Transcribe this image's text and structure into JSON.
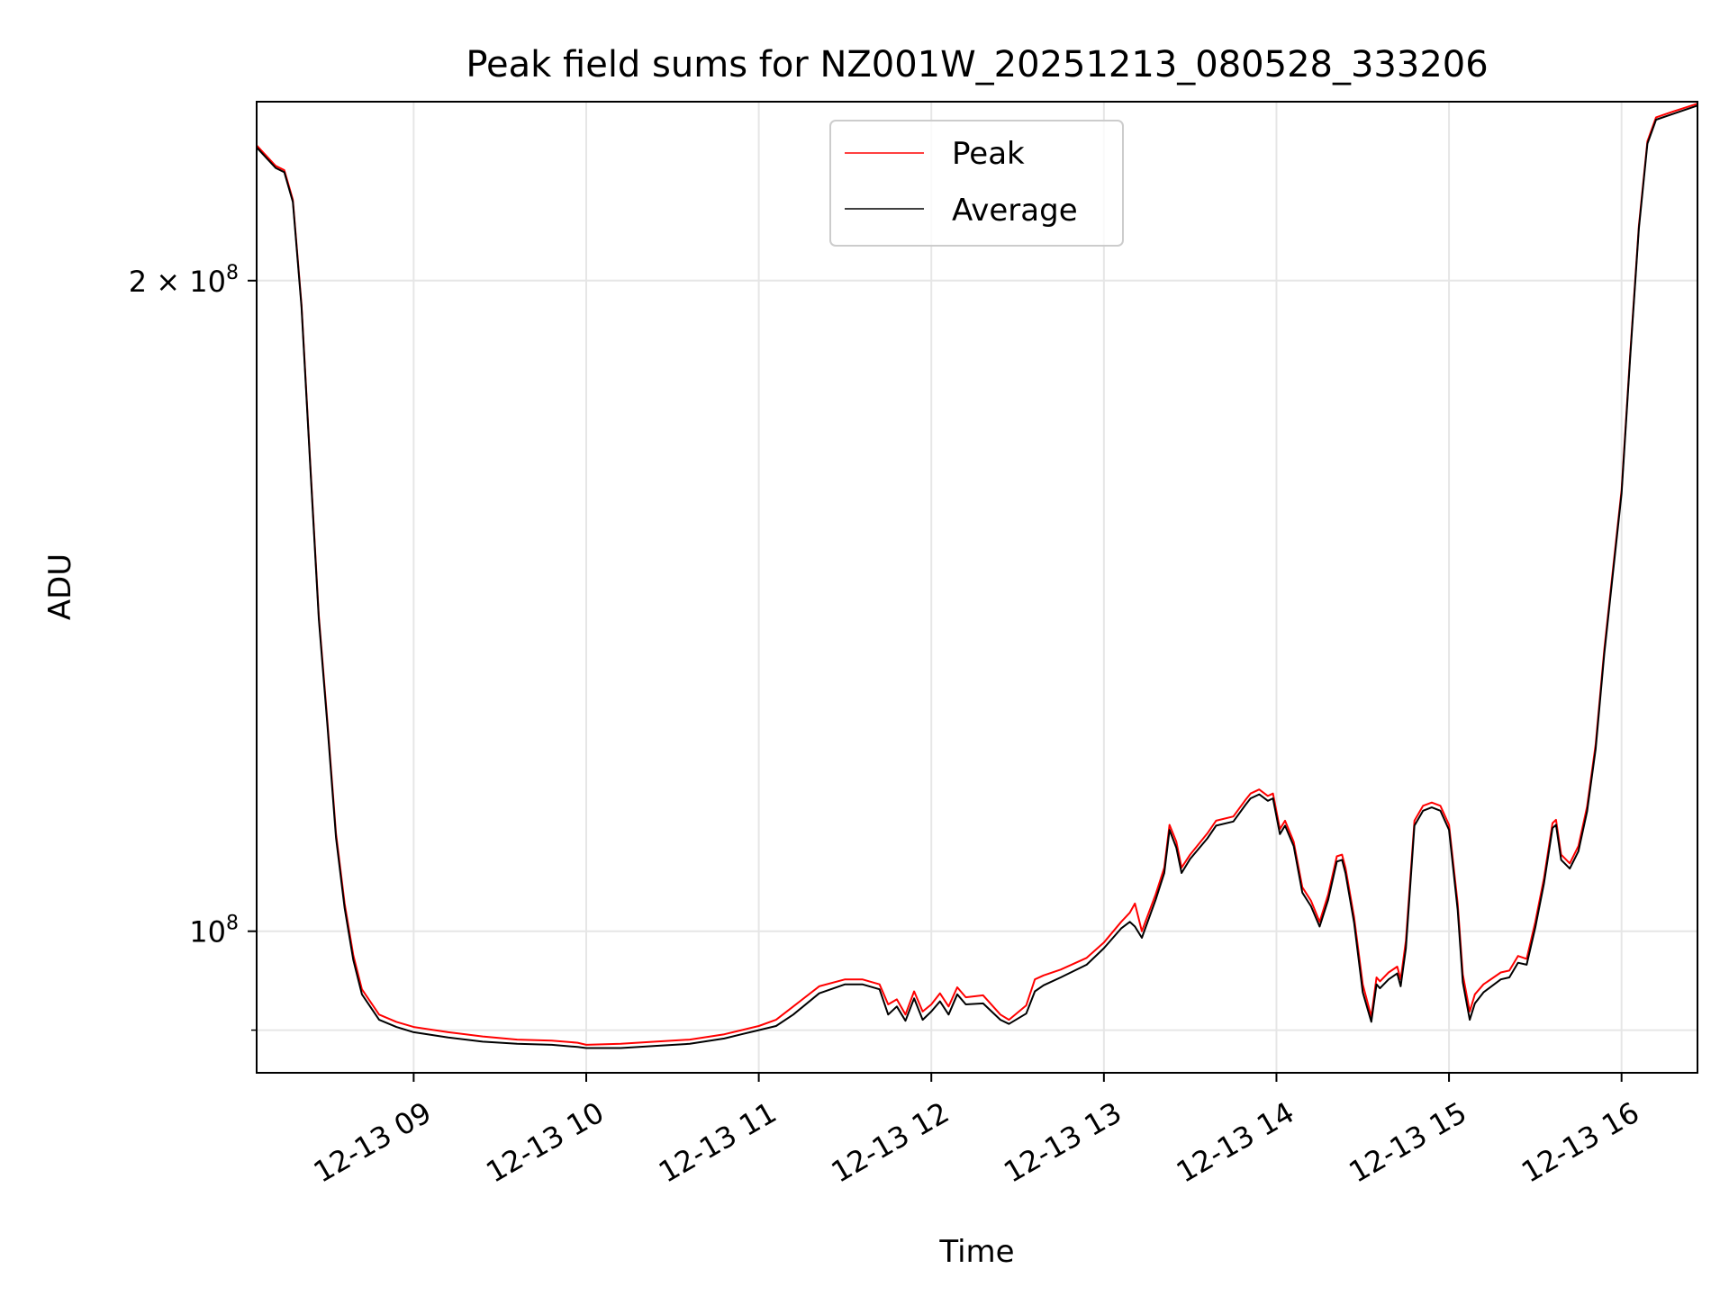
{
  "chart_data": {
    "type": "line",
    "title": "Peak field sums for NZ001W_20251213_080528_333206",
    "xlabel": "Time",
    "ylabel": "ADU",
    "yscale": "log",
    "ylim": [
      86000000,
      242000000
    ],
    "xlim": [
      8.09,
      16.44
    ],
    "grid": true,
    "legend_position": "top-center",
    "x_ticks": [
      {
        "value": 9,
        "label": "12-13 09"
      },
      {
        "value": 10,
        "label": "12-13 10"
      },
      {
        "value": 11,
        "label": "12-13 11"
      },
      {
        "value": 12,
        "label": "12-13 12"
      },
      {
        "value": 13,
        "label": "12-13 13"
      },
      {
        "value": 14,
        "label": "12-13 14"
      },
      {
        "value": 15,
        "label": "12-13 15"
      },
      {
        "value": 16,
        "label": "12-13 16"
      }
    ],
    "y_ticks": [
      {
        "value": 100000000,
        "mantissa": "",
        "exponent": "8"
      },
      {
        "value": 200000000,
        "mantissa": "2",
        "exponent": "8"
      }
    ],
    "y_minor_ticks": [
      90000000
    ],
    "tick_base": "10",
    "tick_times": "×",
    "series": [
      {
        "name": "Peak",
        "color": "#ff0000",
        "x": [
          8.09,
          8.2,
          8.25,
          8.3,
          8.35,
          8.4,
          8.45,
          8.5,
          8.55,
          8.6,
          8.65,
          8.7,
          8.8,
          8.9,
          9.0,
          9.2,
          9.4,
          9.6,
          9.8,
          9.95,
          10.0,
          10.2,
          10.4,
          10.6,
          10.8,
          10.9,
          11.0,
          11.1,
          11.2,
          11.35,
          11.5,
          11.6,
          11.7,
          11.75,
          11.8,
          11.85,
          11.9,
          11.95,
          12.0,
          12.05,
          12.1,
          12.15,
          12.2,
          12.3,
          12.4,
          12.45,
          12.55,
          12.6,
          12.65,
          12.75,
          12.9,
          13.0,
          13.1,
          13.15,
          13.18,
          13.22,
          13.3,
          13.35,
          13.38,
          13.42,
          13.45,
          13.5,
          13.6,
          13.65,
          13.75,
          13.82,
          13.85,
          13.9,
          13.95,
          13.98,
          14.02,
          14.05,
          14.1,
          14.15,
          14.2,
          14.25,
          14.3,
          14.35,
          14.38,
          14.4,
          14.45,
          14.5,
          14.55,
          14.58,
          14.6,
          14.65,
          14.7,
          14.72,
          14.75,
          14.8,
          14.85,
          14.9,
          14.95,
          15.0,
          15.05,
          15.08,
          15.12,
          15.15,
          15.2,
          15.3,
          15.35,
          15.4,
          15.45,
          15.5,
          15.55,
          15.6,
          15.62,
          15.65,
          15.7,
          15.75,
          15.8,
          15.85,
          15.9,
          15.95,
          16.0,
          16.05,
          16.1,
          16.15,
          16.2,
          16.3,
          16.44
        ],
        "y": [
          231000000,
          226000000,
          225000000,
          218000000,
          195000000,
          165000000,
          140000000,
          125000000,
          111000000,
          103000000,
          97500000,
          94000000,
          91500000,
          90800000,
          90300000,
          89800000,
          89400000,
          89100000,
          89000000,
          88800000,
          88600000,
          88700000,
          88900000,
          89100000,
          89600000,
          90000000,
          90400000,
          91000000,
          92300000,
          94300000,
          95000000,
          95000000,
          94500000,
          92500000,
          93000000,
          91500000,
          93800000,
          91800000,
          92500000,
          93600000,
          92300000,
          94200000,
          93200000,
          93400000,
          91500000,
          91000000,
          92400000,
          95000000,
          95400000,
          96000000,
          97200000,
          98800000,
          101000000,
          102000000,
          103000000,
          100000000,
          104000000,
          107000000,
          112000000,
          110000000,
          107000000,
          108500000,
          111000000,
          112500000,
          113000000,
          115000000,
          115800000,
          116300000,
          115500000,
          115800000,
          111500000,
          112500000,
          110000000,
          104800000,
          103300000,
          101000000,
          104000000,
          108300000,
          108500000,
          107000000,
          101500000,
          94500000,
          91300000,
          95200000,
          94800000,
          95700000,
          96300000,
          95000000,
          99000000,
          112500000,
          114300000,
          114700000,
          114300000,
          112000000,
          103000000,
          95500000,
          91800000,
          93500000,
          94500000,
          95700000,
          95900000,
          97400000,
          97100000,
          101000000,
          105800000,
          112200000,
          112600000,
          108500000,
          107500000,
          109500000,
          114200000,
          122000000,
          135000000,
          147000000,
          160000000,
          185000000,
          212000000,
          232000000,
          238000000,
          239500000,
          241500000
        ]
      },
      {
        "name": "Average",
        "color": "#000000",
        "x": [
          8.09,
          8.2,
          8.25,
          8.3,
          8.35,
          8.4,
          8.45,
          8.5,
          8.55,
          8.6,
          8.65,
          8.7,
          8.8,
          8.9,
          9.0,
          9.2,
          9.4,
          9.6,
          9.8,
          9.95,
          10.0,
          10.2,
          10.4,
          10.6,
          10.8,
          10.9,
          11.0,
          11.1,
          11.2,
          11.35,
          11.5,
          11.6,
          11.7,
          11.75,
          11.8,
          11.85,
          11.9,
          11.95,
          12.0,
          12.05,
          12.1,
          12.15,
          12.2,
          12.3,
          12.4,
          12.45,
          12.55,
          12.6,
          12.65,
          12.75,
          12.9,
          13.0,
          13.1,
          13.15,
          13.18,
          13.22,
          13.3,
          13.35,
          13.38,
          13.42,
          13.45,
          13.5,
          13.6,
          13.65,
          13.75,
          13.82,
          13.85,
          13.9,
          13.95,
          13.98,
          14.02,
          14.05,
          14.1,
          14.15,
          14.2,
          14.25,
          14.3,
          14.35,
          14.38,
          14.4,
          14.45,
          14.5,
          14.55,
          14.58,
          14.6,
          14.65,
          14.7,
          14.72,
          14.75,
          14.8,
          14.85,
          14.9,
          14.95,
          15.0,
          15.05,
          15.08,
          15.12,
          15.15,
          15.2,
          15.3,
          15.35,
          15.4,
          15.45,
          15.5,
          15.55,
          15.6,
          15.62,
          15.65,
          15.7,
          15.75,
          15.8,
          15.85,
          15.9,
          15.95,
          16.0,
          16.05,
          16.1,
          16.15,
          16.2,
          16.3,
          16.44
        ],
        "y": [
          230500000,
          225500000,
          224500000,
          217500000,
          194500000,
          164500000,
          139500000,
          124500000,
          110500000,
          102500000,
          97000000,
          93500000,
          91000000,
          90300000,
          89800000,
          89300000,
          88900000,
          88700000,
          88600000,
          88400000,
          88300000,
          88300000,
          88500000,
          88700000,
          89200000,
          89600000,
          90000000,
          90400000,
          91500000,
          93600000,
          94500000,
          94500000,
          94000000,
          91500000,
          92300000,
          90900000,
          93100000,
          91000000,
          91800000,
          92800000,
          91500000,
          93500000,
          92500000,
          92600000,
          91000000,
          90600000,
          91600000,
          93800000,
          94400000,
          95200000,
          96500000,
          98200000,
          100300000,
          101000000,
          100500000,
          99300000,
          103400000,
          106400000,
          111400000,
          109300000,
          106400000,
          108000000,
          110400000,
          111900000,
          112400000,
          114400000,
          115200000,
          115700000,
          114900000,
          115200000,
          110900000,
          111900000,
          109500000,
          104200000,
          102700000,
          100500000,
          103400000,
          107700000,
          107900000,
          106400000,
          100900000,
          93700000,
          90800000,
          94500000,
          94100000,
          95000000,
          95600000,
          94300000,
          98200000,
          111900000,
          113700000,
          114100000,
          113700000,
          111400000,
          102300000,
          94700000,
          91000000,
          92600000,
          93700000,
          95000000,
          95200000,
          96700000,
          96500000,
          100400000,
          105200000,
          111600000,
          112000000,
          107900000,
          106900000,
          108900000,
          113600000,
          121400000,
          134400000,
          146400000,
          159400000,
          184400000,
          211400000,
          231400000,
          237400000,
          238900000,
          241000000
        ]
      }
    ]
  }
}
